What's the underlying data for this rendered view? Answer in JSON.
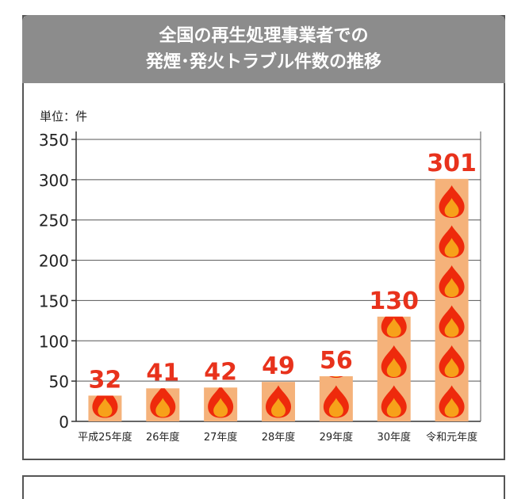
{
  "header": {
    "title_line1": "全国の再生処理事業者での",
    "title_line2": "発煙･発火トラブル件数の推移"
  },
  "colors": {
    "header_bg": "#8c8c8c",
    "bar": "#f5b27a",
    "flame_outer": "#ee2a0c",
    "flame_inner": "#f7a11a",
    "value_label": "#e8321c"
  },
  "chart_data": {
    "type": "bar",
    "unit_label": "単位：件",
    "categories": [
      "平成25年度",
      "26年度",
      "27年度",
      "28年度",
      "29年度",
      "30年度",
      "令和元年度"
    ],
    "values": [
      32,
      41,
      42,
      49,
      56,
      130,
      301
    ],
    "data_labels": [
      "32",
      "41",
      "42",
      "49",
      "56",
      "130",
      "301"
    ],
    "ylim": [
      0,
      350
    ],
    "yticks": [
      0,
      50,
      100,
      150,
      200,
      250,
      300,
      350
    ],
    "grid": true,
    "bar_pattern": "flame-icon"
  }
}
